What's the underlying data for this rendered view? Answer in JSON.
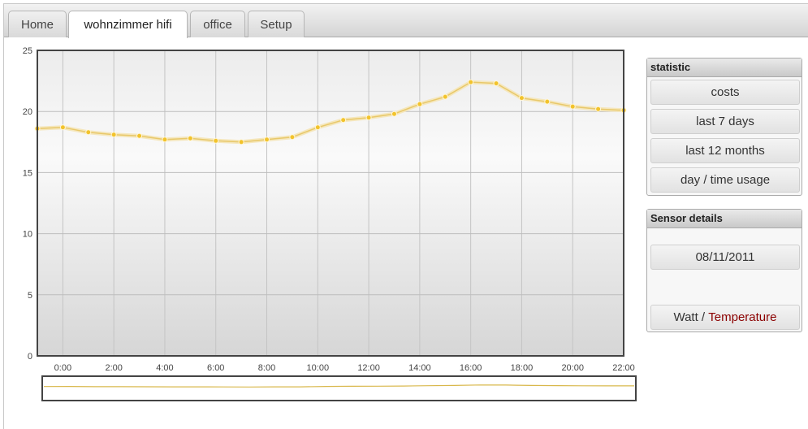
{
  "tabs": [
    "Home",
    "wohnzimmer hifi",
    "office",
    "Setup"
  ],
  "active_tab": 1,
  "statistic": {
    "title": "statistic",
    "buttons": [
      "costs",
      "last 7 days",
      "last 12 months",
      "day / time usage"
    ]
  },
  "sensor": {
    "title": "Sensor details",
    "date": "08/11/2011",
    "unit_watt": "Watt",
    "unit_sep": " / ",
    "unit_temp": "Temperature"
  },
  "colors": {
    "line": "#e8c86a",
    "point": "#f2c32c",
    "active_unit": "#8b0000"
  },
  "chart_data": {
    "type": "area",
    "ylim": [
      0,
      25
    ],
    "yticks": [
      "0",
      "5",
      "10",
      "15",
      "20",
      "25"
    ],
    "xticks": [
      "0:00",
      "2:00",
      "4:00",
      "6:00",
      "8:00",
      "10:00",
      "12:00",
      "14:00",
      "16:00",
      "18:00",
      "20:00",
      "22:00"
    ],
    "x": [
      -1,
      0,
      1,
      2,
      3,
      4,
      5,
      6,
      7,
      8,
      9,
      10,
      11,
      12,
      13,
      14,
      15,
      16,
      17,
      18,
      19,
      20,
      21,
      22
    ],
    "values": [
      18.6,
      18.7,
      18.3,
      18.1,
      18.0,
      17.7,
      17.8,
      17.6,
      17.5,
      17.7,
      17.9,
      18.7,
      19.3,
      19.5,
      19.8,
      20.6,
      21.2,
      22.4,
      22.3,
      21.1,
      20.8,
      20.4,
      20.2,
      20.1
    ],
    "grid": true
  }
}
